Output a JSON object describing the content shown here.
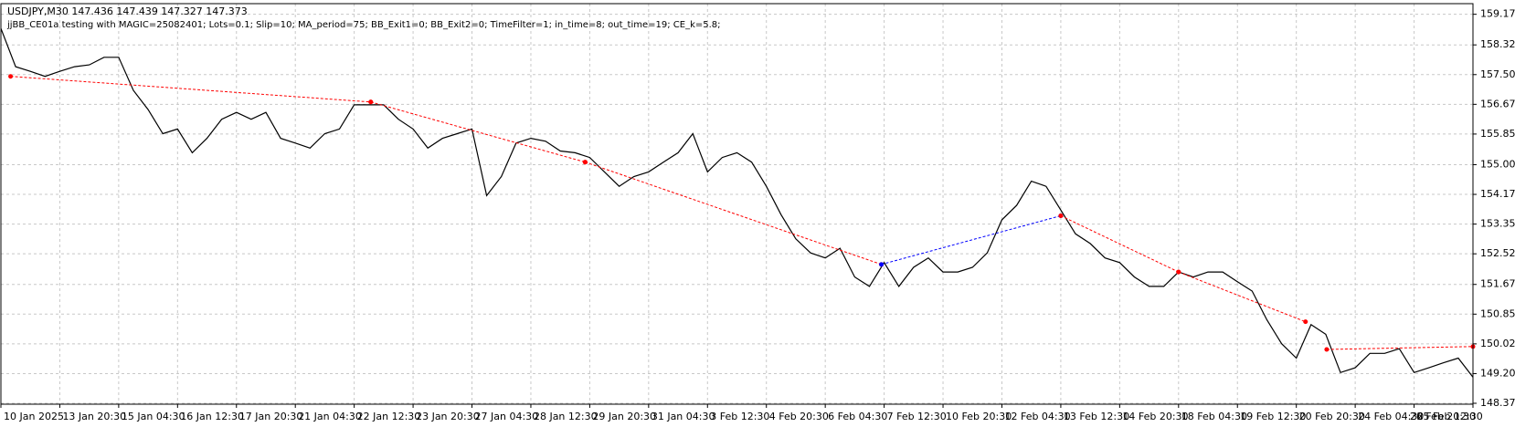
{
  "chart_data": {
    "type": "line",
    "title": "USDJPY,M30  147.436 147.439 147.327 147.373",
    "subtitle": "jjBB_CE01a testing with MAGIC=25082401; Lots=0.1; Slip=10; MA_period=75; BB_Exit1=0; BB_Exit2=0; TimeFilter=1; in_time=8; out_time=19; CE_k=5.8;",
    "grid": true,
    "xlim": [
      0,
      1600
    ],
    "xticks": [
      {
        "value": 0,
        "label": "10 Jan 2025"
      },
      {
        "value": 64,
        "label": "13 Jan 20:30"
      },
      {
        "value": 128,
        "label": "15 Jan 04:30"
      },
      {
        "value": 192,
        "label": "16 Jan 12:30"
      },
      {
        "value": 256,
        "label": "17 Jan 20:30"
      },
      {
        "value": 320,
        "label": "21 Jan 04:30"
      },
      {
        "value": 384,
        "label": "22 Jan 12:30"
      },
      {
        "value": 448,
        "label": "23 Jan 20:30"
      },
      {
        "value": 512,
        "label": "27 Jan 04:30"
      },
      {
        "value": 576,
        "label": "28 Jan 12:30"
      },
      {
        "value": 640,
        "label": "29 Jan 20:30"
      },
      {
        "value": 704,
        "label": "31 Jan 04:30"
      },
      {
        "value": 768,
        "label": "3 Feb 12:30"
      },
      {
        "value": 832,
        "label": "4 Feb 20:30"
      },
      {
        "value": 896,
        "label": "6 Feb 04:30"
      },
      {
        "value": 960,
        "label": "7 Feb 12:30"
      },
      {
        "value": 1024,
        "label": "10 Feb 20:30"
      },
      {
        "value": 1088,
        "label": "12 Feb 04:30"
      },
      {
        "value": 1152,
        "label": "13 Feb 12:30"
      },
      {
        "value": 1216,
        "label": "14 Feb 20:30"
      },
      {
        "value": 1280,
        "label": "18 Feb 04:30"
      },
      {
        "value": 1344,
        "label": "19 Feb 12:30"
      },
      {
        "value": 1408,
        "label": "20 Feb 20:30"
      },
      {
        "value": 1472,
        "label": "24 Feb 04:30"
      },
      {
        "value": 1536,
        "label": "25 Feb 12:30"
      },
      {
        "value": 1600,
        "label": "26 Feb 20:30"
      }
    ],
    "ylim": [
      148.35,
      159.47
    ],
    "yticks": [
      159.175,
      158.325,
      {
        "value": 157.5,
        "label": "157.500"
      },
      156.675,
      {
        "value": 155.85,
        "label": "155.850"
      },
      {
        "value": 155,
        "label": "155.000"
      },
      154.175,
      {
        "value": 153.35,
        "label": "153.350"
      },
      152.525,
      151.675,
      {
        "value": 150.85,
        "label": "150.850"
      },
      150.025,
      {
        "value": 149.2,
        "label": "149.200"
      },
      148.375
    ],
    "x": [
      0,
      16,
      32,
      48,
      64,
      80,
      96,
      112,
      128,
      144,
      160,
      176,
      192,
      208,
      224,
      240,
      256,
      272,
      288,
      304,
      320,
      336,
      352,
      368,
      384,
      400,
      416,
      432,
      448,
      464,
      480,
      496,
      512,
      528,
      544,
      560,
      576,
      592,
      608,
      624,
      640,
      656,
      672,
      688,
      704,
      720,
      736,
      752,
      768,
      784,
      800,
      816,
      832,
      848,
      864,
      880,
      896,
      912,
      928,
      944,
      960,
      976,
      992,
      1008,
      1024,
      1040,
      1056,
      1072,
      1088,
      1104,
      1120,
      1136,
      1152,
      1168,
      1184,
      1200,
      1216,
      1232,
      1248,
      1264,
      1280,
      1296,
      1312,
      1328,
      1344,
      1360,
      1376,
      1392,
      1408,
      1424,
      1440,
      1456,
      1472,
      1488,
      1504,
      1520,
      1536,
      1552,
      1568,
      1584,
      1600
    ],
    "series": [
      {
        "color": "#000000",
        "values": [
          158.78,
          157.72,
          157.59,
          157.45,
          157.59,
          157.72,
          157.77,
          157.98,
          157.98,
          157.06,
          156.53,
          155.86,
          155.99,
          155.33,
          155.73,
          156.26,
          156.45,
          156.26,
          156.45,
          155.73,
          155.6,
          155.46,
          155.86,
          155.99,
          156.66,
          156.66,
          156.66,
          156.26,
          155.99,
          155.46,
          155.73,
          155.86,
          155.99,
          154.14,
          154.67,
          155.6,
          155.73,
          155.65,
          155.38,
          155.33,
          155.2,
          154.8,
          154.4,
          154.67,
          154.8,
          155.07,
          155.33,
          155.86,
          154.8,
          155.2,
          155.33,
          155.07,
          154.4,
          153.61,
          152.94,
          152.55,
          152.41,
          152.68,
          151.88,
          151.62,
          152.28,
          151.62,
          152.15,
          152.41,
          152.02,
          152.02,
          152.15,
          152.55,
          153.47,
          153.87,
          154.54,
          154.4,
          153.74,
          153.08,
          152.81,
          152.41,
          152.28,
          151.88,
          151.62,
          151.62,
          152.02,
          151.88,
          152.02,
          152.02,
          151.75,
          151.49,
          150.69,
          150.03,
          149.63,
          150.56,
          150.29,
          149.23,
          149.36,
          149.76,
          149.76,
          149.89,
          149.23,
          149.36,
          149.5,
          149.63,
          149.1
        ]
      }
    ],
    "trades": [
      {
        "color": "#ff0000",
        "x": [
          10.5,
          402
        ],
        "y": [
          157.45,
          156.74
        ]
      },
      {
        "color": "#ff0000",
        "x": [
          402,
          635
        ],
        "y": [
          156.74,
          155.07
        ]
      },
      {
        "color": "#ff0000",
        "x": [
          635,
          957
        ],
        "y": [
          155.07,
          152.23
        ]
      },
      {
        "color": "#0000ff",
        "x": [
          957,
          1152
        ],
        "y": [
          152.23,
          153.58
        ]
      },
      {
        "color": "#ff0000",
        "x": [
          1152,
          1280
        ],
        "y": [
          153.58,
          152.02
        ]
      },
      {
        "color": "#ff0000",
        "x": [
          1280,
          1418
        ],
        "y": [
          152.02,
          150.64
        ]
      },
      {
        "color": "#ff0000",
        "x": [
          1441,
          1600
        ],
        "y": [
          149.87,
          149.95
        ]
      }
    ]
  }
}
